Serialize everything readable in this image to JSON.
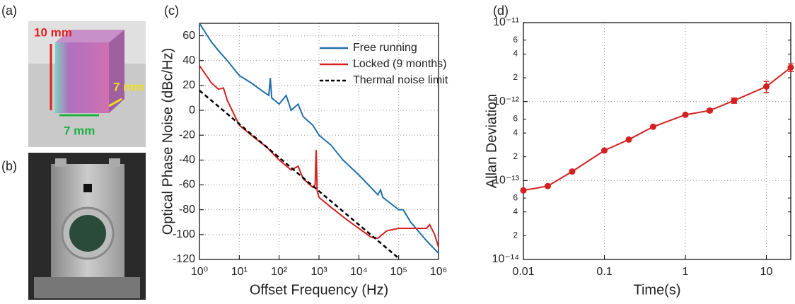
{
  "panels": {
    "a": "(a)",
    "b": "(b)"
  },
  "photo_a": {
    "labels": [
      "10 mm",
      "7 mm",
      "7 mm"
    ]
  },
  "chart_data": [
    {
      "type": "line",
      "panel_label": "(c)",
      "xlabel": "Offset Frequency (Hz)",
      "ylabel": "Optical Phase Noise (dBc/Hz)",
      "xscale": "log",
      "xlim": [
        1,
        1000000
      ],
      "xticks": [
        {
          "value": 1,
          "label": "10⁰"
        },
        {
          "value": 10,
          "label": "10¹"
        },
        {
          "value": 100,
          "label": "10²"
        },
        {
          "value": 1000,
          "label": "10³"
        },
        {
          "value": 10000,
          "label": "10⁴"
        },
        {
          "value": 100000,
          "label": "10⁵"
        },
        {
          "value": 1000000,
          "label": "10⁶"
        }
      ],
      "ylim": [
        -120,
        70
      ],
      "yticks": [
        -120,
        -100,
        -80,
        -60,
        -40,
        -20,
        0,
        20,
        40,
        60
      ],
      "grid": true,
      "legend": "upper right",
      "series": [
        {
          "name": "Free running",
          "color": "#1f6fa8",
          "x": [
            1,
            2,
            3,
            5,
            10,
            20,
            40,
            55,
            60,
            65,
            100,
            150,
            200,
            300,
            400,
            700,
            1000,
            2000,
            4000,
            10000,
            20000,
            30000,
            35000,
            40000,
            100000,
            130000,
            200000,
            500000,
            1000000
          ],
          "values": [
            70,
            55,
            48,
            40,
            28,
            22,
            15,
            12,
            26,
            10,
            5,
            12,
            0,
            5,
            -5,
            -12,
            -20,
            -28,
            -40,
            -52,
            -62,
            -68,
            -64,
            -70,
            -80,
            -80,
            -90,
            -105,
            -115
          ]
        },
        {
          "name": "Locked (9 months)",
          "color": "#d42020",
          "x": [
            1,
            2,
            3,
            4,
            5,
            10,
            20,
            50,
            100,
            200,
            300,
            400,
            700,
            800,
            850,
            900,
            1000,
            2000,
            5000,
            10000,
            20000,
            30000,
            50000,
            100000,
            300000,
            500000,
            600000,
            800000,
            1000000
          ],
          "values": [
            36,
            22,
            17,
            18,
            8,
            -12,
            -20,
            -30,
            -40,
            -48,
            -45,
            -55,
            -62,
            -60,
            -32,
            -65,
            -70,
            -78,
            -88,
            -95,
            -102,
            -103,
            -97,
            -95,
            -95,
            -95,
            -92,
            -100,
            -110
          ]
        },
        {
          "name": "Thermal noise limit",
          "color": "#000000",
          "dash": true,
          "x": [
            1,
            10,
            100,
            1000,
            10000,
            100000
          ],
          "values": [
            16,
            -11,
            -38,
            -65,
            -92,
            -119
          ]
        }
      ]
    },
    {
      "type": "line",
      "panel_label": "(d)",
      "xlabel": "Time(s)",
      "ylabel": "Allan Deviation",
      "xscale": "log",
      "yscale": "log",
      "xlim": [
        0.01,
        20
      ],
      "xticks": [
        0.01,
        0.1,
        1,
        10
      ],
      "ylim": [
        1e-14,
        1e-11
      ],
      "yticks": [
        {
          "value": 1e-14,
          "label": "10⁻¹⁴"
        },
        {
          "value": 1e-13,
          "label": "10⁻¹³"
        },
        {
          "value": 1e-12,
          "label": "10⁻¹²"
        },
        {
          "value": 1e-11,
          "label": "10⁻¹¹"
        }
      ],
      "yminor_ticks": [
        {
          "value": 2e-14,
          "label": "2"
        },
        {
          "value": 4e-14,
          "label": "4"
        },
        {
          "value": 6e-14,
          "label": "6"
        },
        {
          "value": 2e-13,
          "label": "2"
        },
        {
          "value": 4e-13,
          "label": "4"
        },
        {
          "value": 6e-13,
          "label": "6"
        },
        {
          "value": 2e-12,
          "label": "2"
        },
        {
          "value": 4e-12,
          "label": "4"
        },
        {
          "value": 6e-12,
          "label": "6"
        }
      ],
      "grid": true,
      "series": [
        {
          "color": "#d42020",
          "markers": true,
          "x": [
            0.01,
            0.02,
            0.04,
            0.1,
            0.2,
            0.4,
            1,
            2,
            4,
            10,
            20
          ],
          "values": [
            7.5e-14,
            8.5e-14,
            1.3e-13,
            2.4e-13,
            3.3e-13,
            4.8e-13,
            6.8e-13,
            7.7e-13,
            1.03e-12,
            1.55e-12,
            2.7e-12
          ],
          "errors": [
            3e-15,
            3e-15,
            5e-15,
            8e-15,
            1e-14,
            1.5e-14,
            2e-14,
            4e-14,
            8e-14,
            2.5e-13,
            3e-13
          ]
        }
      ]
    }
  ]
}
